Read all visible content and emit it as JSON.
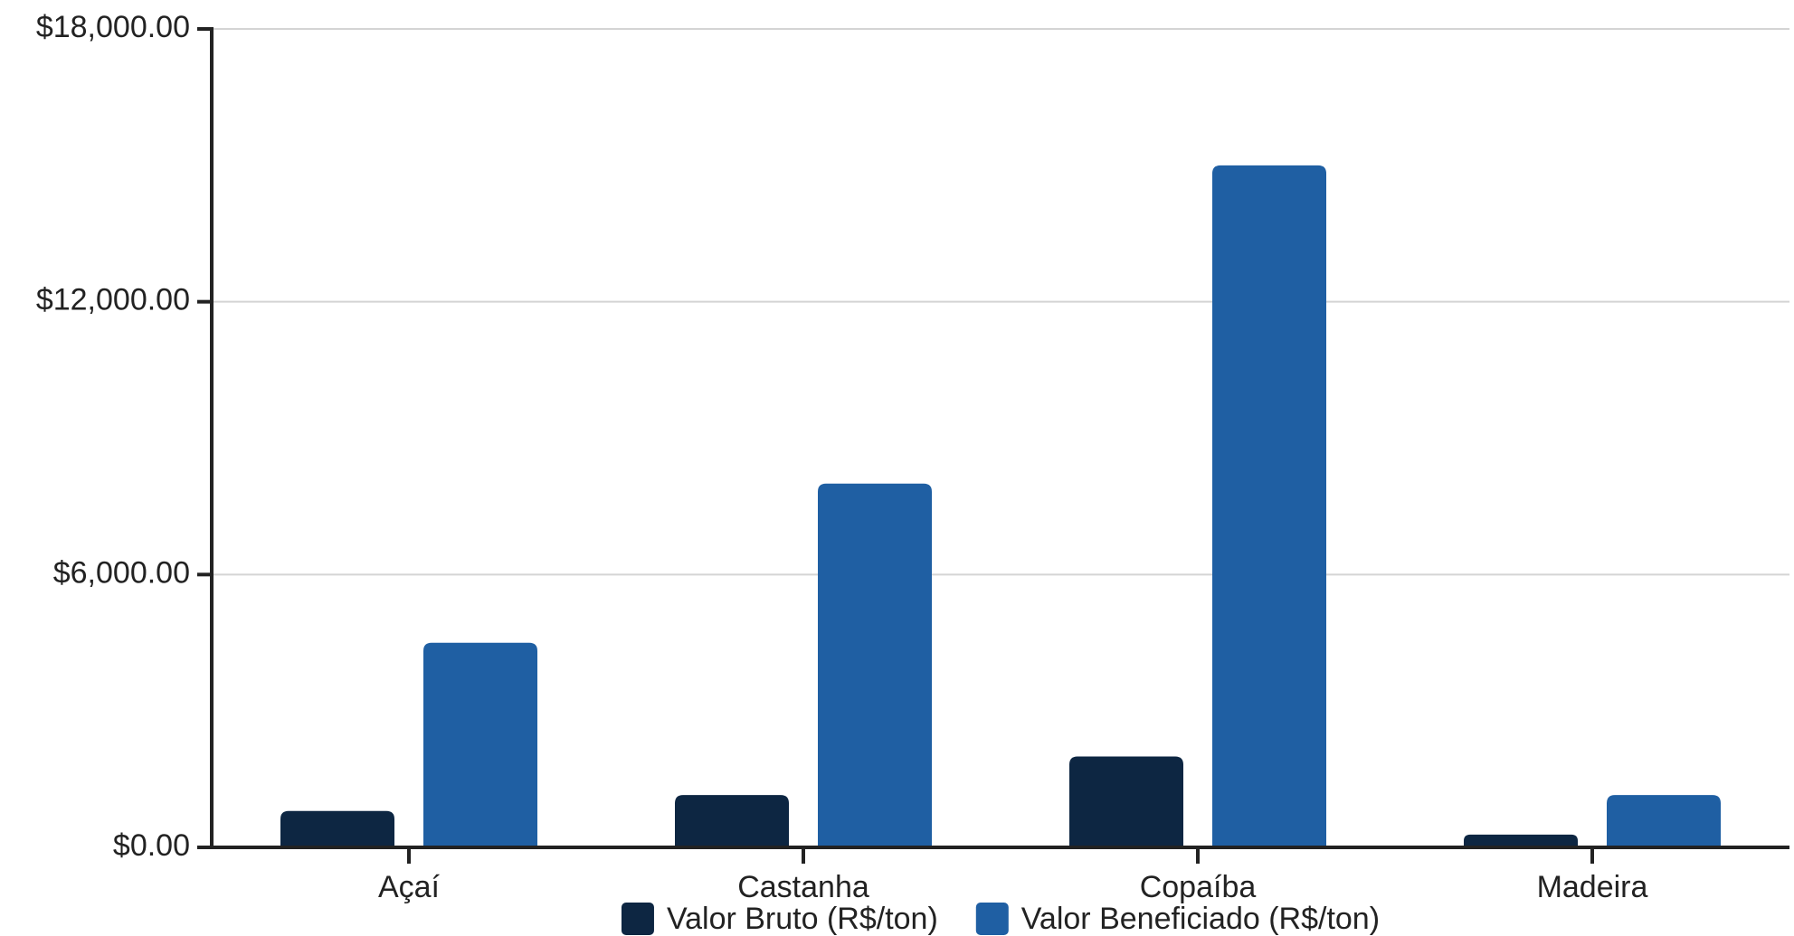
{
  "chart_data": {
    "type": "bar",
    "categories": [
      "Açaí",
      "Castanha",
      "Copaíba",
      "Madeira"
    ],
    "series": [
      {
        "name": "Valor Bruto (R$/ton)",
        "values": [
          800,
          1150,
          2000,
          280
        ],
        "color": "#0d2642"
      },
      {
        "name": "Valor Beneficiado (R$/ton)",
        "values": [
          4500,
          8000,
          15000,
          1150
        ],
        "color": "#1f5fa3"
      }
    ],
    "ylim": [
      0,
      18000
    ],
    "yticks": [
      0,
      6000,
      12000,
      18000
    ],
    "ytick_labels": [
      "$0.00",
      "$6,000.00",
      "$12,000.00",
      "$18,000.00"
    ],
    "title": "",
    "xlabel": "",
    "ylabel": "",
    "grid": true,
    "legend_position": "bottom"
  }
}
